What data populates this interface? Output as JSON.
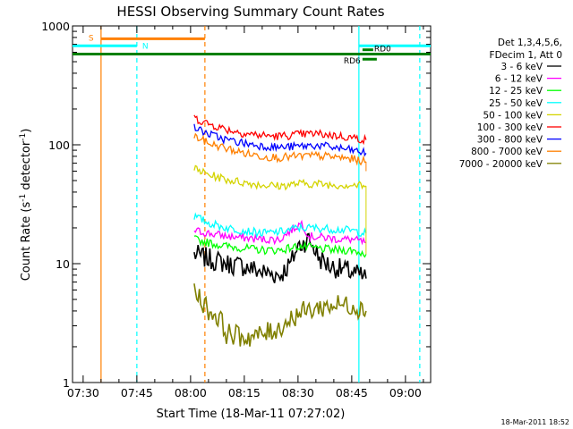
{
  "chart_data": {
    "type": "line",
    "title": "HESSI Observing Summary Count Rates",
    "xlabel": "Start Time (18-Mar-11 07:27:02)",
    "ylabel_main": "Count Rate (s",
    "ylabel_sup1": "-1",
    "ylabel_mid": " detector",
    "ylabel_sup2": "-1",
    "ylabel_end": ")",
    "y_scale": "log",
    "ylim": [
      1,
      1000
    ],
    "xlim": [
      "07:27:02",
      "09:07:02"
    ],
    "x_ticks": [
      "07:30",
      "07:45",
      "08:00",
      "08:15",
      "08:30",
      "08:45",
      "09:00"
    ],
    "y_ticks": [
      "1",
      "10",
      "100",
      "1000"
    ],
    "legend_position": "right",
    "legend_header": [
      "Det 1,3,4,5,6,",
      "FDecim 1, Att 0"
    ],
    "series": [
      {
        "name": "3 - 6 keV",
        "color": "#000000",
        "points": [
          [
            "08:01",
            12
          ],
          [
            "08:05",
            11
          ],
          [
            "08:10",
            10
          ],
          [
            "08:15",
            9.5
          ],
          [
            "08:20",
            8.5
          ],
          [
            "08:25",
            8
          ],
          [
            "08:28",
            10
          ],
          [
            "08:30",
            14
          ],
          [
            "08:33",
            16
          ],
          [
            "08:36",
            11
          ],
          [
            "08:39",
            9.5
          ],
          [
            "08:42",
            9
          ],
          [
            "08:45",
            8.5
          ],
          [
            "08:49",
            7.5
          ]
        ]
      },
      {
        "name": "6 - 12 keV",
        "color": "#ff00ff",
        "points": [
          [
            "08:01",
            19
          ],
          [
            "08:05",
            18
          ],
          [
            "08:10",
            17
          ],
          [
            "08:15",
            16.5
          ],
          [
            "08:20",
            16
          ],
          [
            "08:25",
            16
          ],
          [
            "08:29",
            20
          ],
          [
            "08:31",
            22
          ],
          [
            "08:33",
            17
          ],
          [
            "08:38",
            16.5
          ],
          [
            "08:42",
            16
          ],
          [
            "08:45",
            16
          ],
          [
            "08:49",
            15
          ]
        ]
      },
      {
        "name": "12 - 25 keV",
        "color": "#00ff00",
        "points": [
          [
            "08:01",
            16
          ],
          [
            "08:05",
            15
          ],
          [
            "08:10",
            14
          ],
          [
            "08:15",
            13.5
          ],
          [
            "08:20",
            13
          ],
          [
            "08:25",
            13
          ],
          [
            "08:30",
            14
          ],
          [
            "08:35",
            13.5
          ],
          [
            "08:40",
            13
          ],
          [
            "08:45",
            13
          ],
          [
            "08:49",
            12
          ]
        ]
      },
      {
        "name": "25 - 50 keV",
        "color": "#00ffff",
        "points": [
          [
            "08:01",
            25
          ],
          [
            "08:05",
            22
          ],
          [
            "08:10",
            20
          ],
          [
            "08:15",
            19
          ],
          [
            "08:20",
            18
          ],
          [
            "08:25",
            18.5
          ],
          [
            "08:30",
            20
          ],
          [
            "08:35",
            20
          ],
          [
            "08:40",
            19.5
          ],
          [
            "08:45",
            19
          ],
          [
            "08:49",
            18
          ]
        ]
      },
      {
        "name": "50 - 100 keV",
        "color": "#d4d400",
        "points": [
          [
            "08:01",
            63
          ],
          [
            "08:05",
            56
          ],
          [
            "08:10",
            51
          ],
          [
            "08:15",
            48
          ],
          [
            "08:20",
            46
          ],
          [
            "08:25",
            45
          ],
          [
            "08:30",
            47
          ],
          [
            "08:35",
            47
          ],
          [
            "08:40",
            46
          ],
          [
            "08:45",
            46
          ],
          [
            "08:49",
            45
          ]
        ]
      },
      {
        "name": "100 - 300 keV",
        "color": "#ff0000",
        "points": [
          [
            "08:01",
            168
          ],
          [
            "08:05",
            150
          ],
          [
            "08:10",
            135
          ],
          [
            "08:15",
            125
          ],
          [
            "08:20",
            120
          ],
          [
            "08:25",
            118
          ],
          [
            "08:30",
            122
          ],
          [
            "08:35",
            124
          ],
          [
            "08:40",
            120
          ],
          [
            "08:45",
            115
          ],
          [
            "08:49",
            110
          ]
        ]
      },
      {
        "name": "300 - 800 keV",
        "color": "#0000ff",
        "points": [
          [
            "08:01",
            140
          ],
          [
            "08:05",
            123
          ],
          [
            "08:10",
            110
          ],
          [
            "08:15",
            103
          ],
          [
            "08:20",
            98
          ],
          [
            "08:25",
            95
          ],
          [
            "08:30",
            97
          ],
          [
            "08:35",
            99
          ],
          [
            "08:40",
            95
          ],
          [
            "08:45",
            90
          ],
          [
            "08:49",
            85
          ]
        ]
      },
      {
        "name": "800 - 7000 keV",
        "color": "#ff8000",
        "points": [
          [
            "08:01",
            118
          ],
          [
            "08:05",
            103
          ],
          [
            "08:10",
            93
          ],
          [
            "08:15",
            85
          ],
          [
            "08:20",
            80
          ],
          [
            "08:25",
            78
          ],
          [
            "08:30",
            80
          ],
          [
            "08:35",
            81
          ],
          [
            "08:40",
            79
          ],
          [
            "08:45",
            76
          ],
          [
            "08:49",
            72
          ]
        ]
      },
      {
        "name": "7000 - 20000 keV",
        "color": "#808000",
        "points": [
          [
            "08:01",
            6
          ],
          [
            "08:05",
            4
          ],
          [
            "08:08",
            3.5
          ],
          [
            "08:10",
            2.6
          ],
          [
            "08:15",
            2.4
          ],
          [
            "08:20",
            2.5
          ],
          [
            "08:25",
            2.9
          ],
          [
            "08:30",
            3.8
          ],
          [
            "08:35",
            4.2
          ],
          [
            "08:40",
            4.5
          ],
          [
            "08:45",
            4.5
          ],
          [
            "08:49",
            4
          ]
        ]
      }
    ],
    "state_bars": [
      {
        "label": "S",
        "color": "#ff8000",
        "start": "07:35",
        "end": "08:04",
        "level": 780
      },
      {
        "label": "N",
        "color": "#00ffff",
        "start": "07:27:02",
        "end": "07:45",
        "level": 680
      },
      {
        "label": "",
        "color": "#00ffff",
        "start": "08:47",
        "end": "09:07:02",
        "level": 680
      },
      {
        "label": "RD0",
        "color": "#008000",
        "start": "08:48",
        "end": "08:51",
        "level": 630
      },
      {
        "label": "",
        "color": "#008000",
        "start": "07:27:02",
        "end": "09:07:02",
        "level": 580
      },
      {
        "label": "RD6",
        "color": "#008000",
        "start": "08:48",
        "end": "08:52",
        "level": 525
      }
    ],
    "vertical_markers": [
      {
        "time": "07:35",
        "color": "#ff8000",
        "style": "solid"
      },
      {
        "time": "07:45",
        "color": "#00ffff",
        "style": "dashed"
      },
      {
        "time": "08:04",
        "color": "#ff8000",
        "style": "dashed"
      },
      {
        "time": "08:47",
        "color": "#00ffff",
        "style": "solid"
      },
      {
        "time": "09:04",
        "color": "#00ffff",
        "style": "dashed"
      }
    ]
  },
  "footer": {
    "timestamp": "18-Mar-2011 18:52"
  }
}
